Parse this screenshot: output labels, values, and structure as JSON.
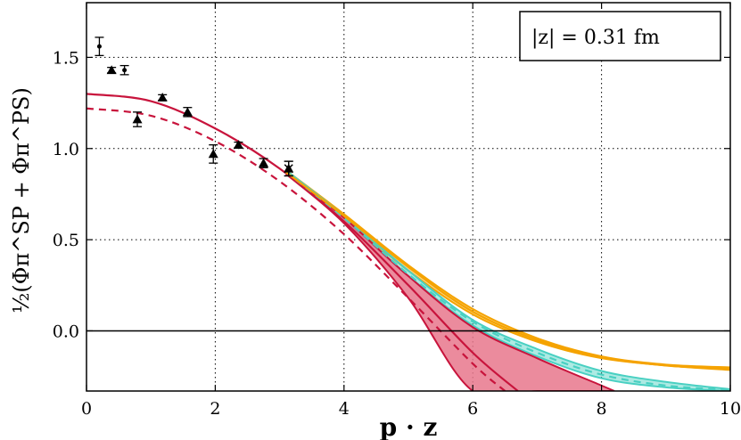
{
  "chart_data": {
    "type": "line",
    "xlabel": "p · z",
    "ylabel": "½(Φπ^SP + Φπ^PS)",
    "xlim": [
      0,
      10
    ],
    "ylim": [
      -0.33,
      1.8
    ],
    "x_ticks": [
      "0",
      "2",
      "4",
      "6",
      "8",
      "10"
    ],
    "y_ticks": [
      "0.0",
      "0.5",
      "1.0",
      "1.5"
    ],
    "x_tick_values": [
      0,
      2,
      4,
      6,
      8,
      10
    ],
    "y_tick_values": [
      0.0,
      0.5,
      1.0,
      1.5
    ],
    "grid": true,
    "annotation": "|z| = 0.31 fm",
    "colors": {
      "crimson": "#c8143c",
      "crimson_fill": "#e8778c",
      "teal": "#49d0c2",
      "orange": "#f5a300",
      "points": "#000000"
    },
    "bands": [
      {
        "color": "orange",
        "x": [
          3.1,
          4,
          5,
          6,
          7,
          8,
          9,
          10
        ],
        "lower": [
          0.86,
          0.62,
          0.33,
          0.09,
          -0.06,
          -0.15,
          -0.19,
          -0.215
        ],
        "upper": [
          0.88,
          0.64,
          0.36,
          0.12,
          -0.04,
          -0.14,
          -0.185,
          -0.2
        ]
      },
      {
        "color": "teal",
        "x": [
          3.1,
          4,
          5,
          6,
          7,
          8,
          9,
          10
        ],
        "lower": [
          0.86,
          0.61,
          0.3,
          0.03,
          -0.14,
          -0.26,
          -0.31,
          -0.33
        ],
        "upper": [
          0.88,
          0.63,
          0.33,
          0.06,
          -0.1,
          -0.22,
          -0.28,
          -0.32
        ]
      },
      {
        "color": "crimson",
        "x": [
          3.1,
          4,
          5,
          6,
          7,
          8,
          8.2
        ],
        "lower": [
          0.86,
          0.59,
          0.18,
          -0.33,
          -0.33,
          -0.33,
          -0.33
        ],
        "upper": [
          0.87,
          0.62,
          0.3,
          0.02,
          -0.15,
          -0.3,
          -0.33
        ]
      }
    ],
    "lines": [
      {
        "color": "crimson",
        "style": "solid",
        "x": [
          0,
          1,
          2,
          3,
          4,
          5,
          6,
          6.7
        ],
        "y": [
          1.3,
          1.26,
          1.11,
          0.89,
          0.6,
          0.25,
          -0.12,
          -0.33
        ]
      },
      {
        "color": "crimson",
        "style": "dashed",
        "x": [
          0,
          1,
          2,
          3,
          4,
          5,
          6,
          6.5
        ],
        "y": [
          1.22,
          1.18,
          1.04,
          0.82,
          0.53,
          0.18,
          -0.18,
          -0.33
        ]
      },
      {
        "color": "teal",
        "style": "dashed",
        "x": [
          3.1,
          4,
          5,
          6,
          7,
          8,
          9,
          10
        ],
        "y": [
          0.87,
          0.62,
          0.31,
          0.05,
          -0.12,
          -0.24,
          -0.3,
          -0.325
        ]
      },
      {
        "color": "orange",
        "style": "solid",
        "x": [
          3.1,
          4,
          5,
          6,
          7,
          8,
          9,
          10
        ],
        "y": [
          0.87,
          0.63,
          0.35,
          0.105,
          -0.05,
          -0.145,
          -0.19,
          -0.21
        ]
      }
    ],
    "points_triangle": [
      {
        "x": 0.39,
        "y": 1.43,
        "err": 0.015
      },
      {
        "x": 0.79,
        "y": 1.16,
        "err": 0.04
      },
      {
        "x": 1.18,
        "y": 1.28,
        "err": 0.015
      },
      {
        "x": 1.57,
        "y": 1.2,
        "err": 0.025
      },
      {
        "x": 1.97,
        "y": 0.97,
        "err": 0.05
      },
      {
        "x": 2.36,
        "y": 1.02,
        "err": 0.015
      },
      {
        "x": 2.75,
        "y": 0.92,
        "err": 0.025
      },
      {
        "x": 3.14,
        "y": 0.89,
        "err": 0.04
      }
    ],
    "points_dot": [
      {
        "x": 0.2,
        "y": 1.56,
        "err": 0.05
      },
      {
        "x": 0.59,
        "y": 1.43,
        "err": 0.025
      }
    ],
    "points_cross": [
      {
        "x": 3.14,
        "y": 0.89,
        "err": 0.04
      }
    ]
  }
}
